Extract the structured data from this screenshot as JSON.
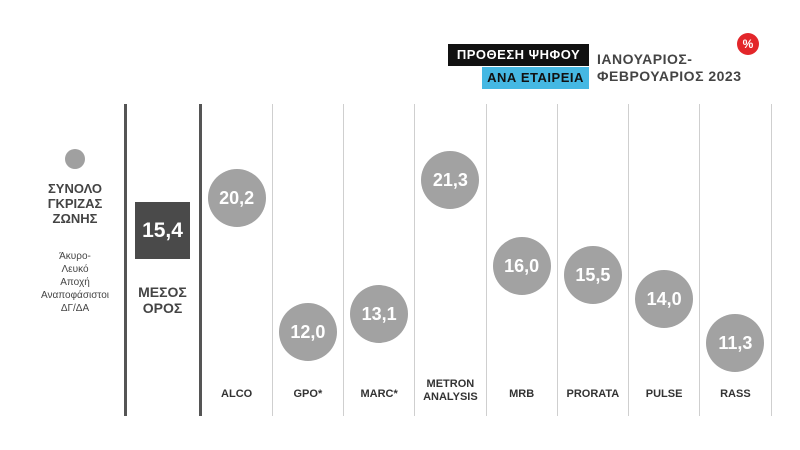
{
  "header": {
    "line1": "ΠΡΟΘΕΣΗ ΨΗΦΟΥ",
    "line2": "ΑΝΑ ΕΤΑΙΡΕΙΑ",
    "period_line1": "ΙΑΝΟΥΑΡΙΟΣ-",
    "period_line2": "ΦΕΒΡΟΥΑΡΙΟΣ 2023",
    "badge": "%"
  },
  "legend": {
    "title_lines": [
      "ΣΥΝΟΛΟ",
      "ΓΚΡΙΖΑΣ",
      "ΖΩΝΗΣ"
    ],
    "items": [
      "Άκυρο-",
      "Λευκό",
      "Αποχή",
      "Αναποφάσιστοι",
      "ΔΓ/ΔΑ"
    ]
  },
  "mean": {
    "value": "15,4",
    "label_lines": [
      "ΜΕΣΟΣ",
      "ΟΡΟΣ"
    ]
  },
  "colors": {
    "bubble": "#a2a2a2",
    "mean_box": "#4a4a4a",
    "header_black": "#111111",
    "header_blue": "#45b8e3",
    "badge": "#e3262a"
  },
  "chart_data": {
    "type": "scatter",
    "title": "ΠΡΟΘΕΣΗ ΨΗΦΟΥ ΑΝΑ ΕΤΑΙΡΕΙΑ",
    "subtitle": "ΙΑΝΟΥΑΡΙΟΣ-ΦΕΒΡΟΥΑΡΙΟΣ 2023",
    "ylabel": "",
    "xlabel": "",
    "ylim": [
      11.3,
      21.3
    ],
    "categories": [
      "ALCO",
      "GPO*",
      "MARC*",
      "METRON ANALYSIS",
      "MRB",
      "PRORATA",
      "PULSE",
      "RASS"
    ],
    "values": [
      20.2,
      12.0,
      13.1,
      21.3,
      16.0,
      15.5,
      14.0,
      11.3
    ],
    "value_labels": [
      "20,2",
      "12,0",
      "13,1",
      "21,3",
      "16,0",
      "15,5",
      "14,0",
      "11,3"
    ],
    "category_labels": [
      [
        "ALCO"
      ],
      [
        "GPO*"
      ],
      [
        "MARC*"
      ],
      [
        "METRON",
        "ANALYSIS"
      ],
      [
        "MRB"
      ],
      [
        "PRORATA"
      ],
      [
        "PULSE"
      ],
      [
        "RASS"
      ]
    ],
    "mean": 15.4,
    "grid": false,
    "legend": "left"
  }
}
